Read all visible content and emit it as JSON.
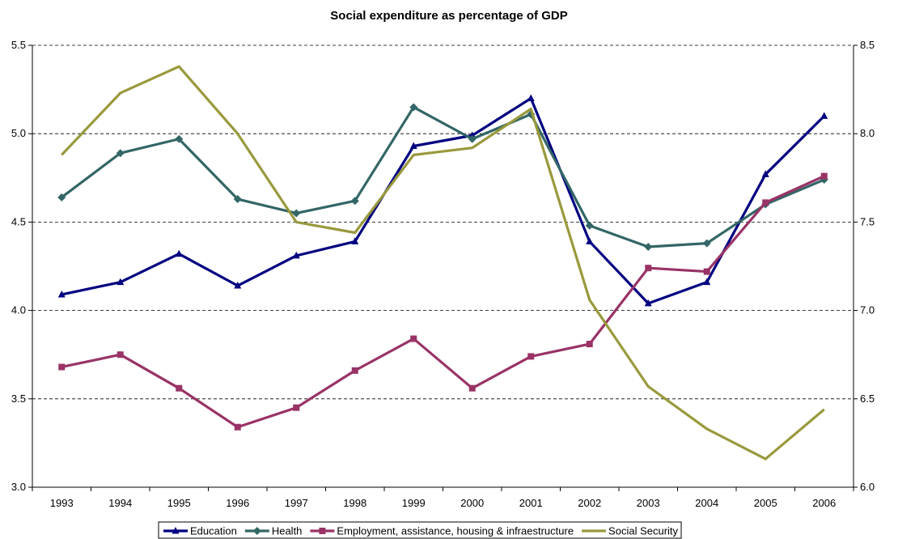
{
  "chart_data": {
    "type": "line",
    "title": "Social expenditure as percentage of GDP",
    "xlabel": "",
    "ylabel": "",
    "categories": [
      "1993",
      "1994",
      "1995",
      "1996",
      "1997",
      "1998",
      "1999",
      "2000",
      "2001",
      "2002",
      "2003",
      "2004",
      "2005",
      "2006"
    ],
    "y_left": {
      "min": 3.0,
      "max": 5.5,
      "ticks": [
        "3.0",
        "3.5",
        "4.0",
        "4.5",
        "5.0",
        "5.5"
      ]
    },
    "y_right": {
      "min": 6.0,
      "max": 8.5,
      "ticks": [
        "6.0",
        "6.5",
        "7.0",
        "7.5",
        "8.0",
        "8.5"
      ]
    },
    "grid": "horizontal dashed",
    "legend_position": "bottom",
    "series": [
      {
        "name": "Education",
        "axis": "left",
        "color": "#000080",
        "marker": "triangle",
        "values": [
          4.09,
          4.16,
          4.32,
          4.14,
          4.31,
          4.39,
          4.93,
          4.99,
          5.2,
          4.39,
          4.04,
          4.16,
          4.77,
          5.1
        ]
      },
      {
        "name": "Health",
        "axis": "left",
        "color": "#336666",
        "marker": "diamond",
        "values": [
          4.64,
          4.89,
          4.97,
          4.63,
          4.55,
          4.62,
          5.15,
          4.97,
          5.11,
          4.48,
          4.36,
          4.38,
          4.6,
          4.74
        ]
      },
      {
        "name": "Employment, assistance, housing & infraestructure",
        "axis": "left",
        "color": "#993366",
        "marker": "square",
        "values": [
          3.68,
          3.75,
          3.56,
          3.34,
          3.45,
          3.66,
          3.84,
          3.56,
          3.74,
          3.81,
          4.24,
          4.22,
          4.61,
          4.76
        ]
      },
      {
        "name": "Social Security",
        "axis": "right",
        "color": "#99993d",
        "marker": "none",
        "values": [
          7.88,
          8.23,
          8.38,
          8.0,
          7.5,
          7.44,
          7.88,
          7.92,
          8.14,
          7.06,
          6.57,
          6.33,
          6.16,
          6.44
        ]
      }
    ]
  }
}
